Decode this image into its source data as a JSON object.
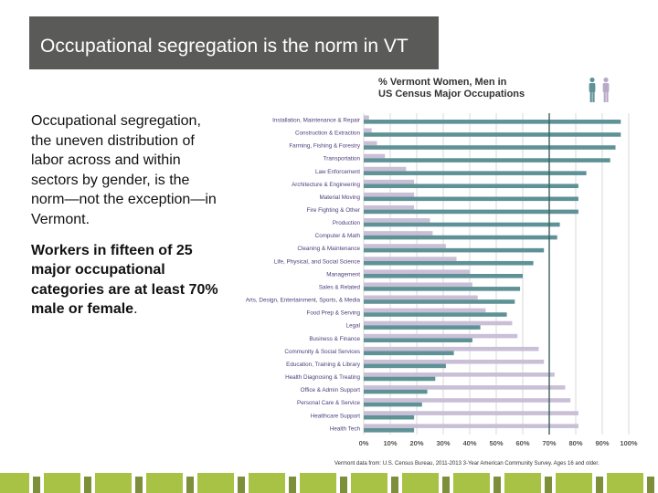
{
  "slide": {
    "title": "Occupational segregation is the norm in VT",
    "paragraph1": "Occupational segregation, the uneven distribution of labor across and within sectors by gender, is the norm—not the exception—in Vermont.",
    "paragraph2_bold": "Workers in fifteen of 25 major occupational categories are at least 70% male or female",
    "paragraph2_end": ".",
    "source": "Vermont data from: U.S. Census Bureau, 2011-2013 3-Year American Community Survey. Ages 16 and older."
  },
  "colors": {
    "women": "#c9bfd6",
    "men": "#5e9296",
    "threshold_line": "#3d5f5f",
    "grid": "#d8d8d8",
    "title_bg": "#5a5a58",
    "footer_green": "#a8c246"
  },
  "legend": {
    "men_icon": "man-icon",
    "women_icon": "woman-icon"
  },
  "chart_data": {
    "type": "bar",
    "title_line1": "% Vermont Women, Men in",
    "title_line2": "US Census Major Occupations",
    "xlim": [
      0,
      100
    ],
    "x_ticks": [
      "0%",
      "10%",
      "20%",
      "30%",
      "40%",
      "50%",
      "60%",
      "70%",
      "80%",
      "90%",
      "100%"
    ],
    "threshold": 70,
    "categories": [
      "Installation, Maintenance & Repair",
      "Construction & Extraction",
      "Farming, Fishing & Forestry",
      "Transportation",
      "Law Enforcement",
      "Architecture & Engineering",
      "Material Moving",
      "Fire Fighting & Other",
      "Production",
      "Computer & Math",
      "Cleaning & Maintenance",
      "Life, Physical, and Social Science",
      "Management",
      "Sales & Related",
      "Arts, Design, Entertainment, Sports, & Media",
      "Food Prep & Serving",
      "Legal",
      "Business & Finance",
      "Community & Social Services",
      "Education, Training & Library",
      "Health Diagnosing & Treating",
      "Office & Admin Support",
      "Personal Care & Service",
      "Healthcare Support",
      "Health Tech"
    ],
    "series": [
      {
        "name": "Women",
        "values": [
          2,
          3,
          5,
          8,
          16,
          19,
          19,
          19,
          25,
          26,
          31,
          35,
          40,
          41,
          43,
          46,
          56,
          58,
          66,
          68,
          72,
          76,
          78,
          81,
          81
        ]
      },
      {
        "name": "Men",
        "values": [
          97,
          97,
          95,
          93,
          84,
          81,
          81,
          81,
          74,
          73,
          68,
          64,
          60,
          59,
          57,
          54,
          44,
          41,
          34,
          31,
          27,
          24,
          22,
          19,
          19
        ]
      }
    ]
  }
}
